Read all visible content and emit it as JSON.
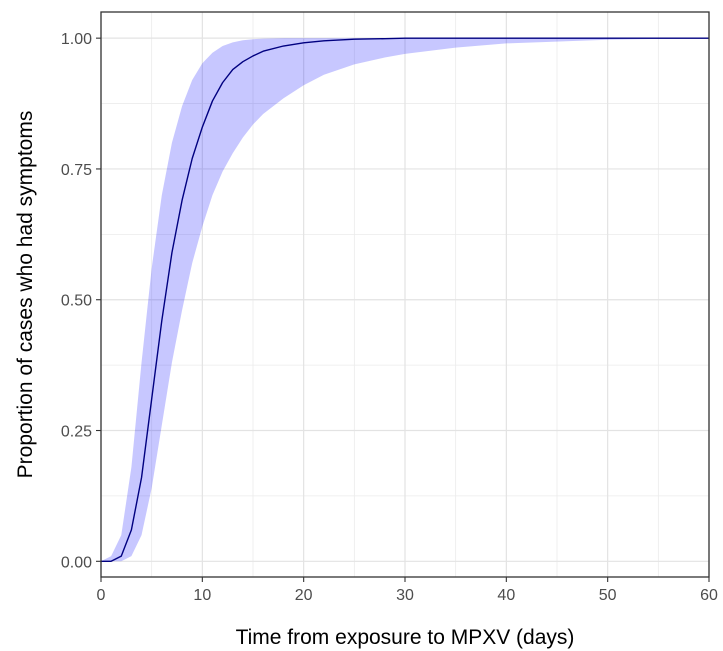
{
  "chart_data": {
    "type": "line",
    "title": "",
    "xlabel": "Time from exposure to MPXV (days)",
    "ylabel": "Proportion of cases who had symptoms",
    "xlim": [
      0,
      60
    ],
    "ylim": [
      -0.03,
      1.05
    ],
    "x_ticks": [
      0,
      10,
      20,
      30,
      40,
      50,
      60
    ],
    "x_tick_labels": [
      "0",
      "10",
      "20",
      "30",
      "40",
      "50",
      "60"
    ],
    "y_ticks": [
      0,
      0.25,
      0.5,
      0.75,
      1.0
    ],
    "y_tick_labels": [
      "0.00",
      "0.25",
      "0.50",
      "0.75",
      "1.00"
    ],
    "grid": true,
    "legend": "none",
    "series": [
      {
        "kind": "line",
        "color": "#000080",
        "x": [
          0,
          1,
          2,
          3,
          4,
          5,
          6,
          7,
          8,
          9,
          10,
          11,
          12,
          13,
          14,
          15,
          16,
          18,
          20,
          22,
          25,
          28,
          30,
          35,
          40,
          50,
          60
        ],
        "y": [
          0,
          0,
          0.01,
          0.06,
          0.16,
          0.31,
          0.46,
          0.59,
          0.69,
          0.77,
          0.83,
          0.88,
          0.915,
          0.94,
          0.955,
          0.966,
          0.975,
          0.985,
          0.991,
          0.995,
          0.998,
          0.999,
          1.0,
          1.0,
          1.0,
          1.0,
          1.0
        ]
      },
      {
        "kind": "band",
        "color": "#0000ff",
        "opacity": 0.22,
        "x": [
          0,
          1,
          2,
          3,
          4,
          5,
          6,
          7,
          8,
          9,
          10,
          11,
          12,
          13,
          14,
          15,
          16,
          18,
          20,
          22,
          25,
          28,
          30,
          35,
          40,
          50,
          60
        ],
        "lower": [
          0,
          0,
          0,
          0.01,
          0.05,
          0.14,
          0.26,
          0.38,
          0.48,
          0.57,
          0.64,
          0.7,
          0.745,
          0.78,
          0.81,
          0.835,
          0.855,
          0.885,
          0.91,
          0.93,
          0.95,
          0.963,
          0.97,
          0.982,
          0.99,
          0.997,
          1.0
        ],
        "upper": [
          0,
          0.01,
          0.05,
          0.18,
          0.38,
          0.56,
          0.7,
          0.8,
          0.87,
          0.92,
          0.952,
          0.972,
          0.985,
          0.992,
          0.996,
          0.998,
          0.999,
          1.0,
          1.0,
          1.0,
          1.0,
          1.0,
          1.0,
          1.0,
          1.0,
          1.0,
          1.0
        ]
      }
    ]
  },
  "colors": {
    "panel_border": "#333333",
    "grid": "#ebebeb",
    "tick": "#333333",
    "line": "#000080",
    "band": "#0000ff"
  }
}
